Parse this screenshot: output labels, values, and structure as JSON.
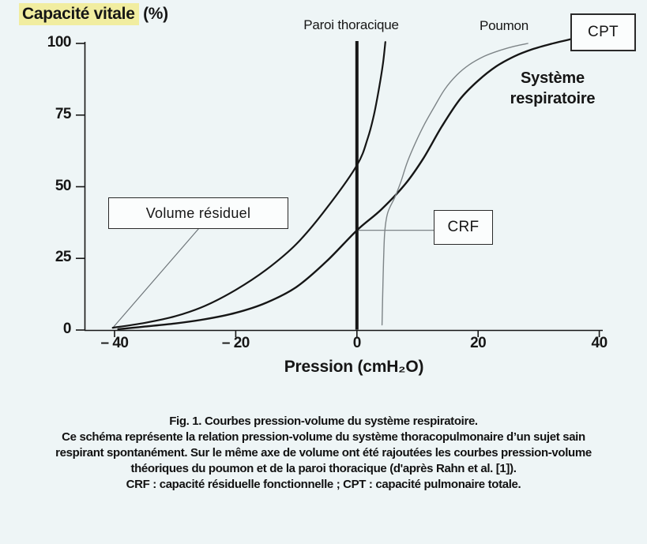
{
  "title": {
    "highlighted": "Capacité vitale",
    "suffix": " (%)"
  },
  "labels": {
    "paroi_thoracique": "Paroi thoracique",
    "poumon": "Poumon",
    "systeme_respiratoire": "Système\nrespiratoire",
    "cpt": "CPT",
    "crf": "CRF",
    "volume_residuel": "Volume résiduel",
    "x_axis_title": "Pression (cmH₂O)"
  },
  "axes": {
    "x": {
      "tick_labels": [
        "– 40",
        "– 20",
        "0",
        "20",
        "40"
      ]
    },
    "y": {
      "tick_labels": [
        "0",
        "25",
        "50",
        "75",
        "100"
      ]
    }
  },
  "caption": {
    "lines": [
      "Fig. 1. Courbes pression-volume du système respiratoire.",
      "Ce schéma représente la relation pression-volume du système thoracopulmonaire d’un sujet sain",
      "respirant spontanément. Sur le même axe de volume ont été rajoutées les courbes pression-volume",
      "théoriques du poumon et de la paroi thoracique (d'après Rahn et al. [1]).",
      "CRF : capacité résiduelle fonctionnelle ; CPT : capacité pulmonaire totale."
    ]
  },
  "colors": {
    "ink": "#161616",
    "curve_light": "#7d8487",
    "leader": "#6f767a",
    "highlight": "#f1eda0",
    "background": "#eef5f6",
    "box_fill": "#fbfdfd"
  },
  "chart_data": {
    "type": "line",
    "title": "Capacité vitale (%)",
    "xlabel": "Pression (cmH2O)",
    "ylabel": "Capacité vitale (%)",
    "xlim": [
      -47,
      47
    ],
    "ylim": [
      0,
      104
    ],
    "x_ticks": [
      -40,
      -20,
      0,
      20,
      40
    ],
    "y_ticks": [
      0,
      25,
      50,
      75,
      100
    ],
    "grid": false,
    "legend": "labels-on-curves",
    "reference_lines": [
      {
        "name": "zero-pressure-line",
        "x": 0,
        "bold": true
      }
    ],
    "series": [
      {
        "name": "Système respiratoire",
        "color": "#161616",
        "width": 2.4,
        "points": [
          [
            -39.4,
            0.3
          ],
          [
            -35,
            1.2
          ],
          [
            -30,
            2.3
          ],
          [
            -25,
            3.8
          ],
          [
            -20,
            6
          ],
          [
            -15,
            9.5
          ],
          [
            -10,
            15
          ],
          [
            -5,
            24
          ],
          [
            0,
            34.8
          ],
          [
            4,
            42
          ],
          [
            8,
            51
          ],
          [
            11,
            60
          ],
          [
            14,
            71
          ],
          [
            17,
            80.5
          ],
          [
            20,
            87
          ],
          [
            23,
            92
          ],
          [
            26,
            95.5
          ],
          [
            29,
            98
          ],
          [
            32,
            99.8
          ],
          [
            35.3,
            101.5
          ]
        ]
      },
      {
        "name": "Paroi thoracique",
        "color": "#161616",
        "width": 2.2,
        "points": [
          [
            -40.3,
            0.8
          ],
          [
            -35,
            2.5
          ],
          [
            -30,
            4.8
          ],
          [
            -25,
            8.5
          ],
          [
            -20,
            14
          ],
          [
            -15,
            21
          ],
          [
            -10,
            30
          ],
          [
            -5,
            42.5
          ],
          [
            0,
            57.5
          ],
          [
            1.8,
            67
          ],
          [
            2.8,
            75
          ],
          [
            3.7,
            85
          ],
          [
            4.3,
            93
          ],
          [
            4.7,
            100.5
          ]
        ]
      },
      {
        "name": "Poumon",
        "color": "#7d8487",
        "width": 1.4,
        "points": [
          [
            4.15,
            1.8
          ],
          [
            4.25,
            12
          ],
          [
            4.4,
            24
          ],
          [
            4.6,
            34.5
          ],
          [
            5.1,
            41
          ],
          [
            6.3,
            46.5
          ],
          [
            7.3,
            52
          ],
          [
            8.3,
            58.5
          ],
          [
            9.7,
            65.5
          ],
          [
            11.2,
            72
          ],
          [
            12.8,
            78
          ],
          [
            14.5,
            84
          ],
          [
            16.5,
            89
          ],
          [
            18.5,
            92.5
          ],
          [
            21,
            95.5
          ],
          [
            23.5,
            97.5
          ],
          [
            26,
            99
          ],
          [
            28.2,
            100
          ]
        ]
      }
    ],
    "annotations": [
      {
        "label": "CPT",
        "x": 35.3,
        "y": 101.5
      },
      {
        "label": "CRF",
        "x": 0,
        "y": 34.8
      },
      {
        "label": "Volume résiduel",
        "x": -40.3,
        "y": 0.8
      }
    ]
  }
}
